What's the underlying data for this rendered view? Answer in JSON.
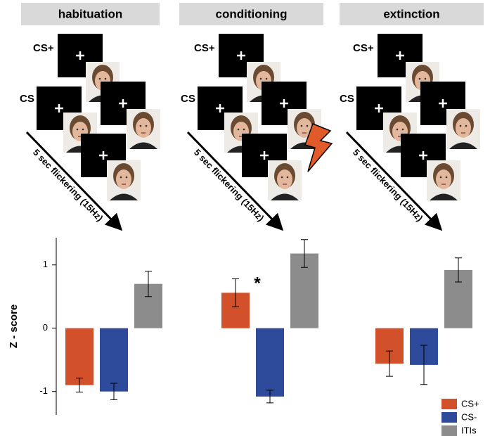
{
  "panels": [
    {
      "title": "habituation",
      "cs_plus": "CS+",
      "cs_minus": "CS -",
      "arrow_label": "5 sec flickering (15Hz)"
    },
    {
      "title": "conditioning",
      "cs_plus": "CS+",
      "cs_minus": "CS -",
      "arrow_label": "5 sec flickering (15Hz)"
    },
    {
      "title": "extinction",
      "cs_plus": "CS+",
      "cs_minus": "CS -",
      "arrow_label": "5 sec flickering (15Hz)"
    }
  ],
  "chart_data": {
    "type": "bar",
    "y_label": "Z - score",
    "categories": [
      null,
      null,
      null
    ],
    "series": [
      {
        "name": "CS+",
        "color": "#d2502a",
        "values": [
          -0.9,
          0.56,
          -0.56
        ],
        "errors": [
          0.11,
          0.22,
          0.2
        ]
      },
      {
        "name": "CS-",
        "color": "#2e4a9a",
        "values": [
          -1.0,
          -1.08,
          -0.58
        ],
        "errors": [
          0.13,
          0.1,
          0.31
        ]
      },
      {
        "name": "ITIs",
        "color": "#8c8c8c",
        "values": [
          0.7,
          1.18,
          0.92
        ],
        "errors": [
          0.2,
          0.22,
          0.19
        ]
      }
    ],
    "annotation": "*",
    "ylim": [
      -1.37,
      1.43
    ],
    "yticks": [
      -1,
      0,
      1
    ],
    "legend": "bottom-right"
  }
}
